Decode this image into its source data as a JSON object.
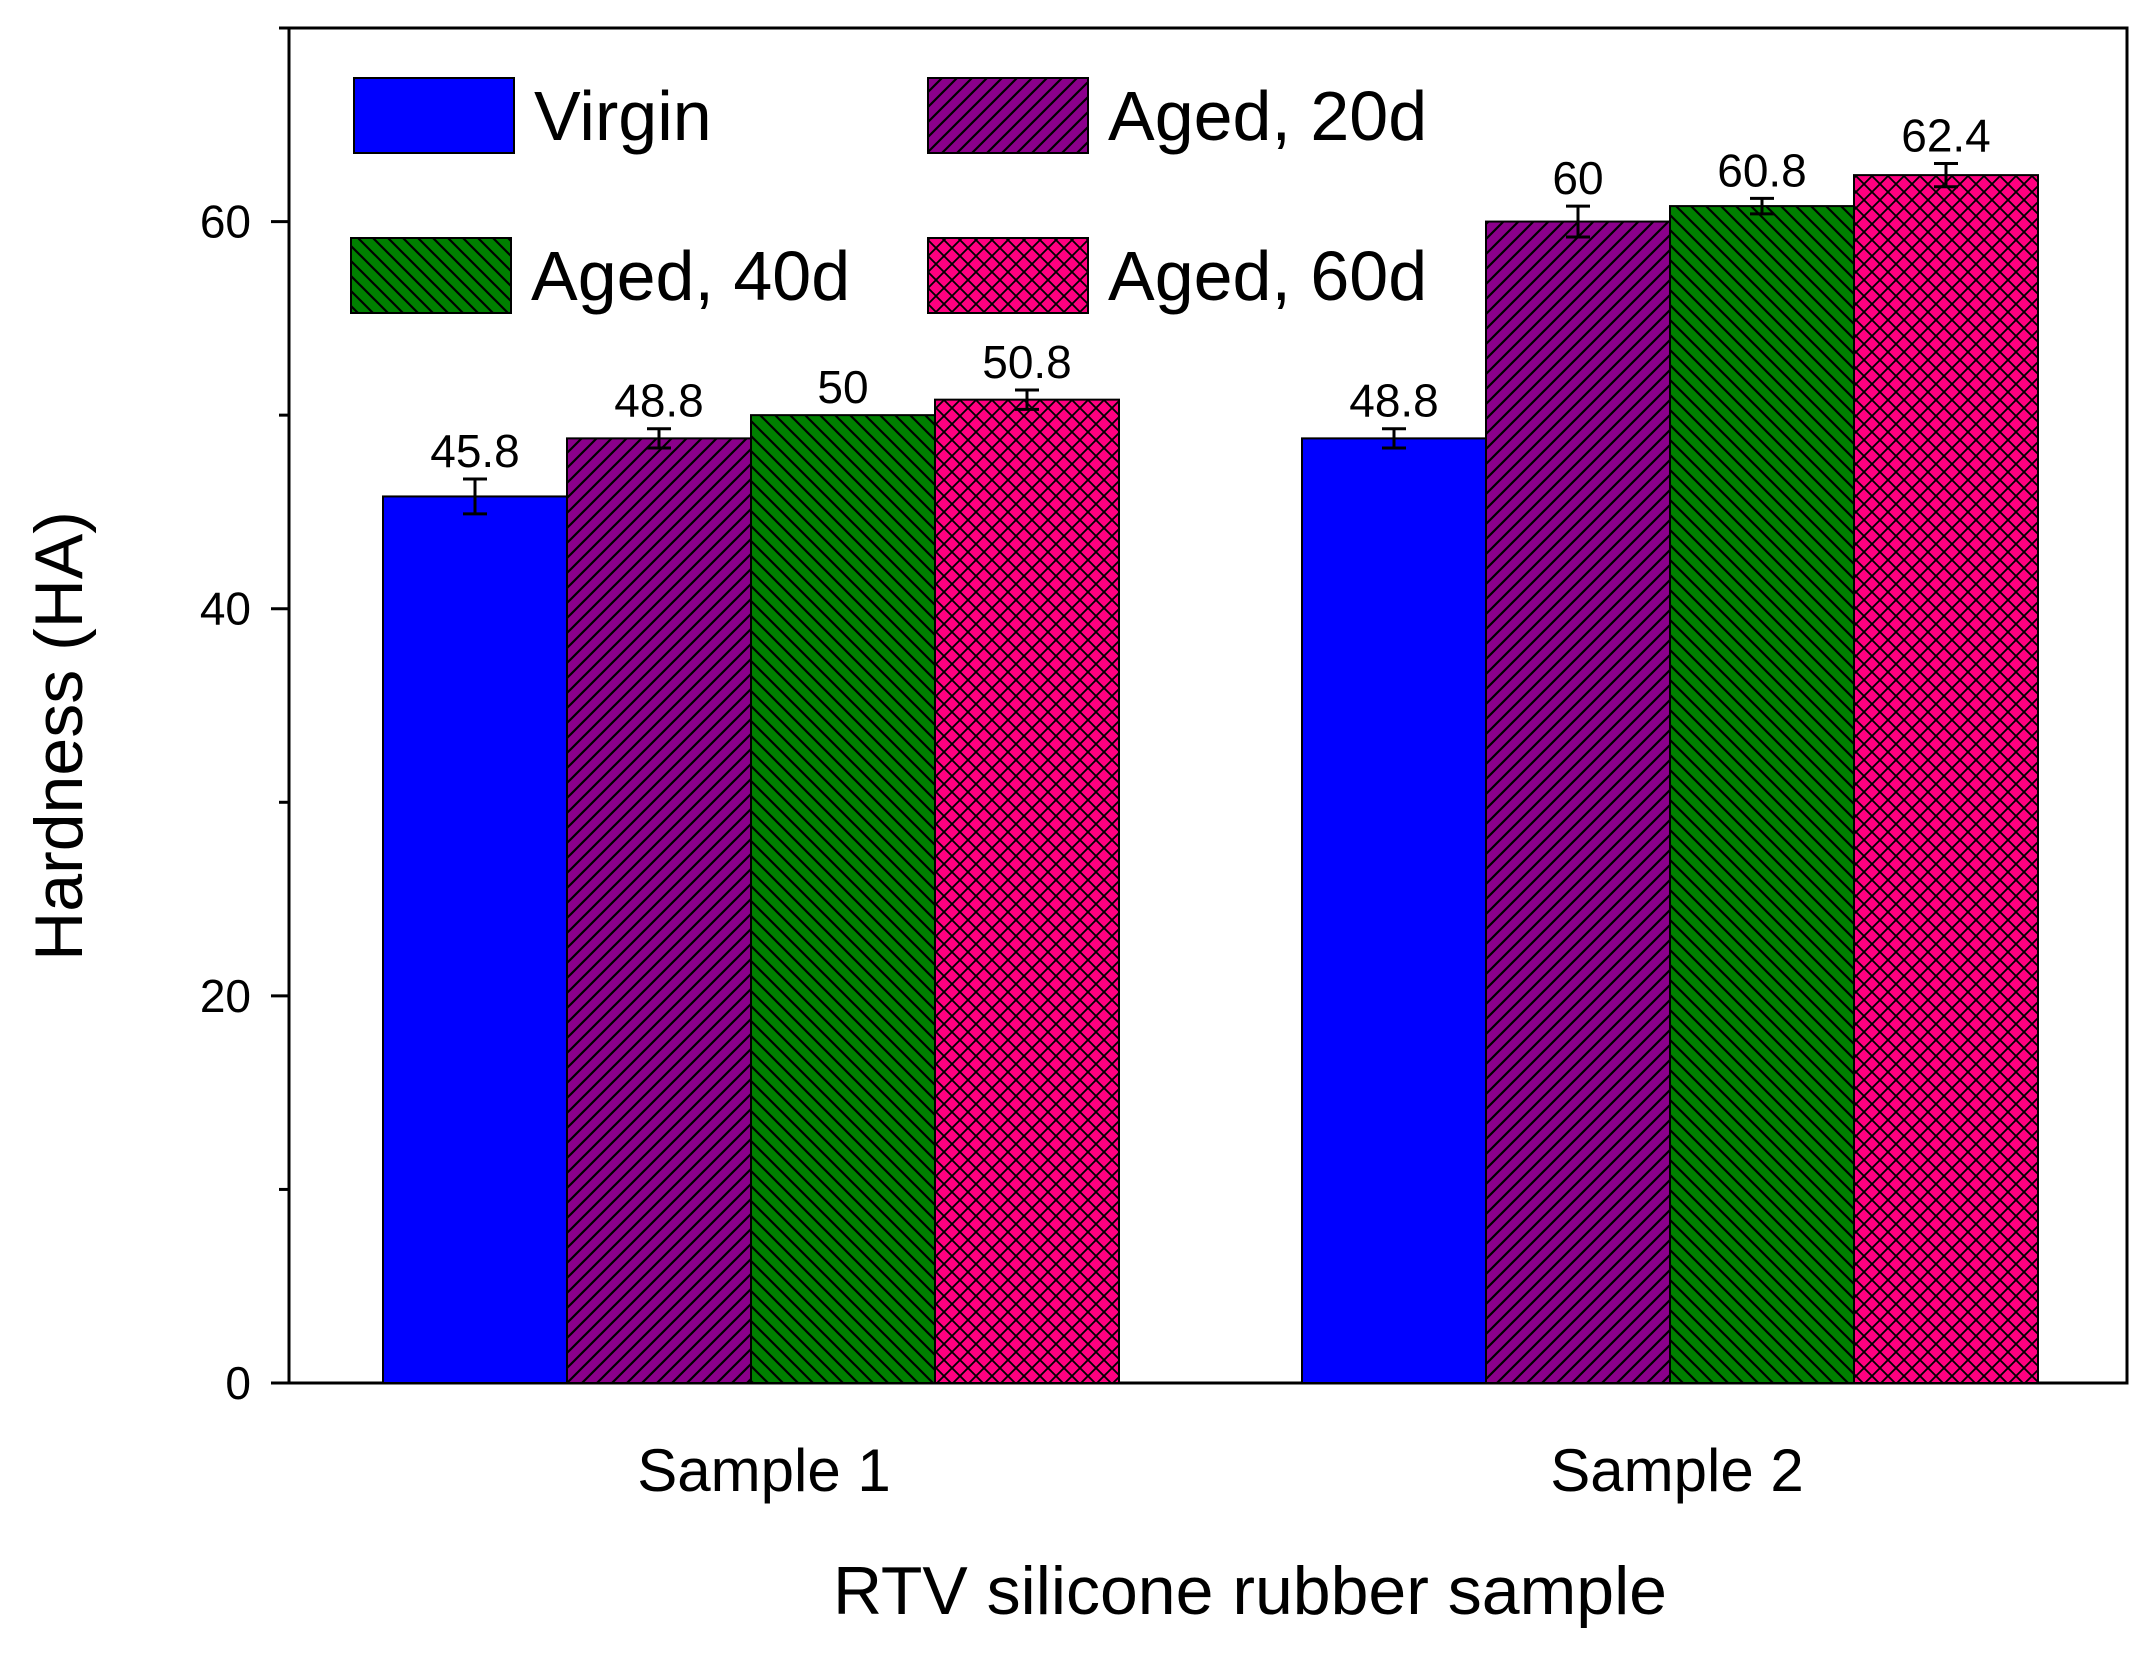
{
  "chart_data": {
    "type": "bar",
    "title": "",
    "xlabel": "RTV silicone rubber sample",
    "ylabel": "Hardness  (HA)",
    "categories": [
      "Sample 1",
      "Sample 2"
    ],
    "ylim": [
      0,
      70
    ],
    "yticks_major": [
      0,
      20,
      40,
      60
    ],
    "yticks_minor": [
      10,
      30,
      50,
      70
    ],
    "grid": false,
    "legend_position": "top-left",
    "series": [
      {
        "name": "Virgin",
        "values": [
          45.8,
          48.8
        ],
        "errors": [
          0.9,
          0.5
        ],
        "labels": [
          "45.8",
          "48.8"
        ],
        "color": "#0000ff",
        "pattern": "solid"
      },
      {
        "name": "Aged, 20d",
        "values": [
          48.8,
          60
        ],
        "errors": [
          0.5,
          0.8
        ],
        "labels": [
          "48.8",
          "60"
        ],
        "color": "#8b008b",
        "pattern": "right-diagonal"
      },
      {
        "name": "Aged, 40d",
        "values": [
          50,
          60.8
        ],
        "errors": [
          0,
          0.4
        ],
        "labels": [
          "50",
          "60.8"
        ],
        "color": "#008000",
        "pattern": "left-diagonal"
      },
      {
        "name": "Aged, 60d",
        "values": [
          50.8,
          62.4
        ],
        "errors": [
          0.5,
          0.6
        ],
        "labels": [
          "50.8",
          "62.4"
        ],
        "color": "#ff0080",
        "pattern": "crosshatch"
      }
    ]
  }
}
